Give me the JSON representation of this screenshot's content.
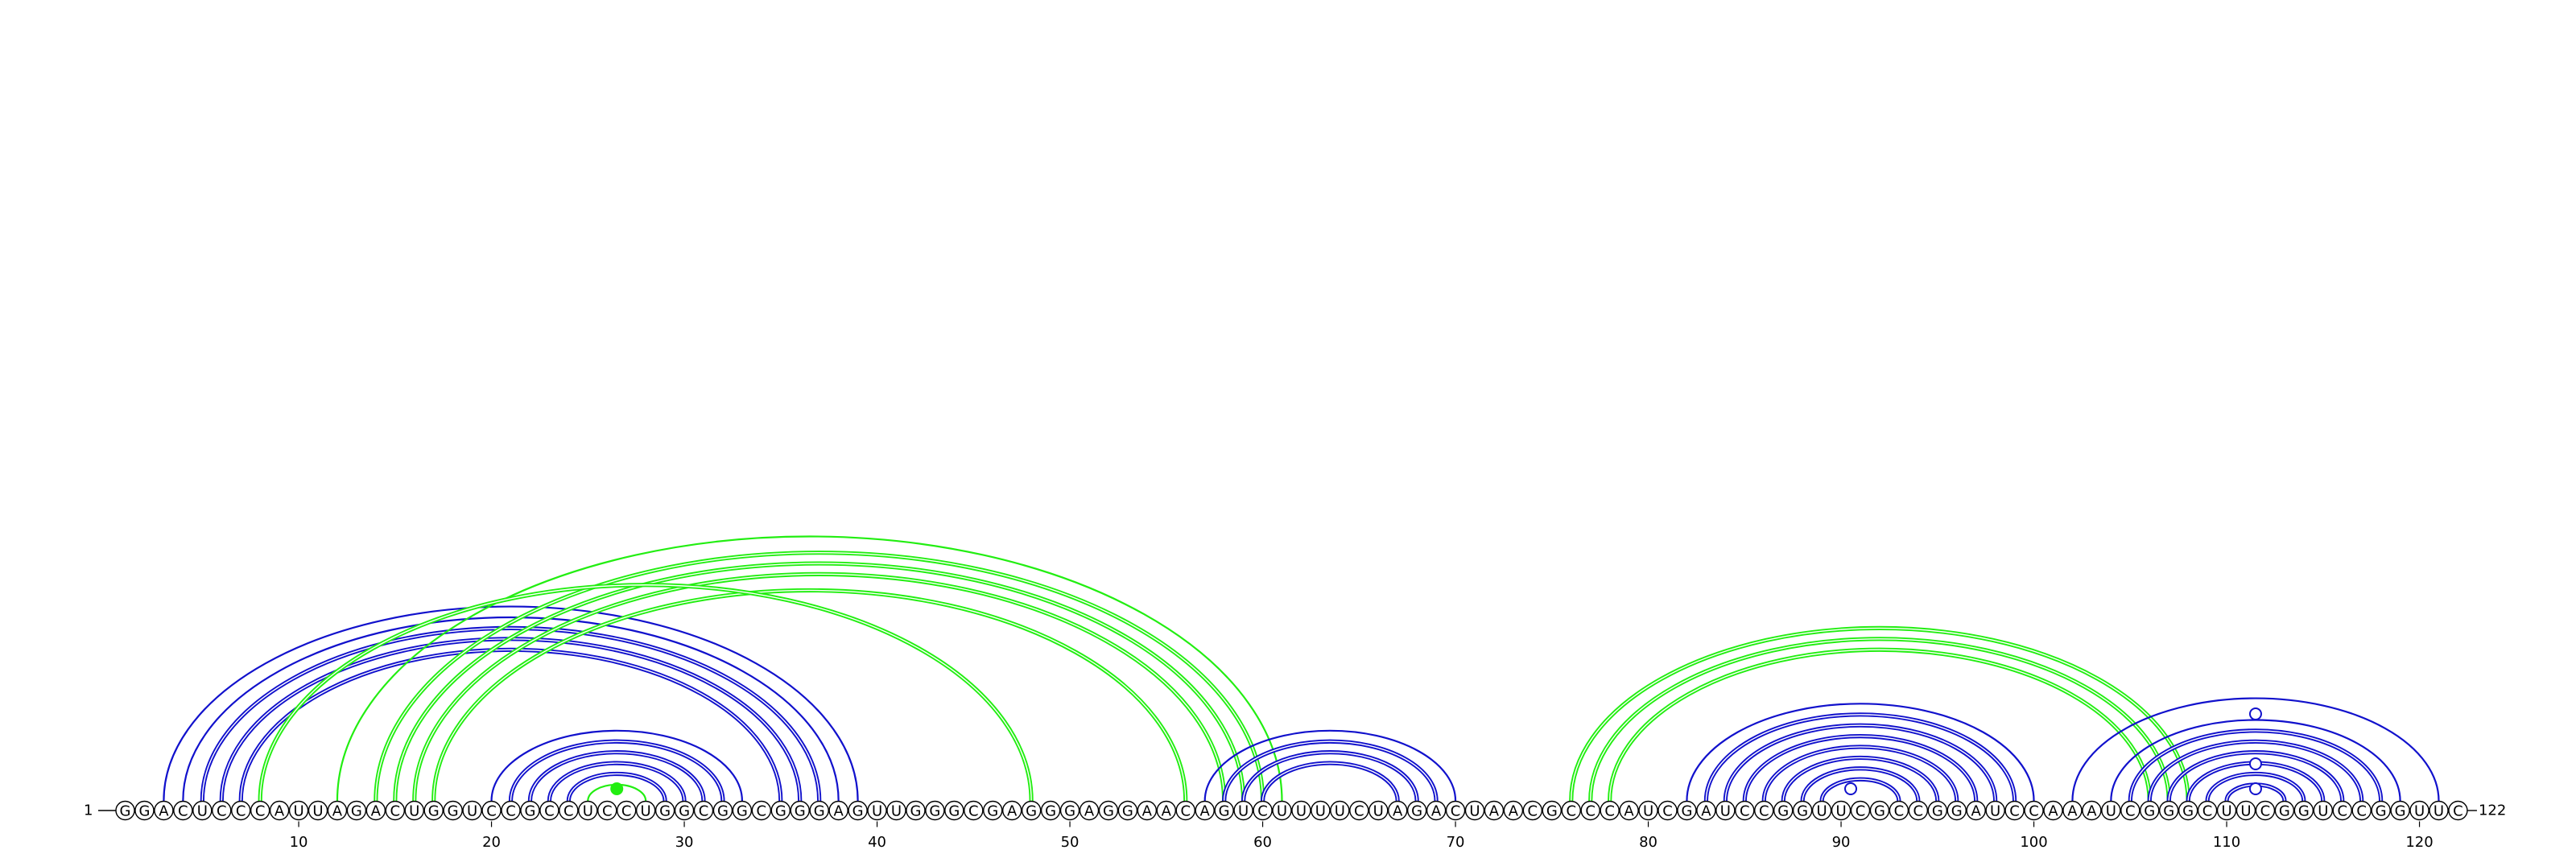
{
  "sequence": "GGACUCCCAUUAGACUGGUCCGCCUCCUGGCGGCGGGAGUUGGGCGAGGGAGGAACAGUCUUUUCUAGACUAACGCCCAUCGAUCCGGUUCGCCGGAUCCAAAUCGGGCUUCGGUCCGGUUC",
  "length": 122,
  "start_label": "1",
  "end_label": "122",
  "ticks": [
    10,
    20,
    30,
    40,
    50,
    60,
    70,
    80,
    90,
    100,
    110,
    120
  ],
  "colors": {
    "blue": "#1111cc",
    "green": "#22ee11"
  },
  "arcs": [
    {
      "i": 3,
      "j": 39,
      "color": "blue",
      "thick": false
    },
    {
      "i": 4,
      "j": 38,
      "color": "blue",
      "thick": false
    },
    {
      "i": 5,
      "j": 37,
      "color": "blue",
      "thick": true
    },
    {
      "i": 6,
      "j": 36,
      "color": "blue",
      "thick": true
    },
    {
      "i": 7,
      "j": 35,
      "color": "blue",
      "thick": true
    },
    {
      "i": 20,
      "j": 33,
      "color": "blue",
      "thick": false
    },
    {
      "i": 21,
      "j": 32,
      "color": "blue",
      "thick": true
    },
    {
      "i": 22,
      "j": 31,
      "color": "blue",
      "thick": true
    },
    {
      "i": 23,
      "j": 30,
      "color": "blue",
      "thick": true
    },
    {
      "i": 24,
      "j": 29,
      "color": "blue",
      "thick": true
    },
    {
      "i": 25,
      "j": 28,
      "color": "green",
      "thick": false
    },
    {
      "i": 12,
      "j": 61,
      "color": "green",
      "thick": false
    },
    {
      "i": 14,
      "j": 60,
      "color": "green",
      "thick": true
    },
    {
      "i": 15,
      "j": 59,
      "color": "green",
      "thick": true
    },
    {
      "i": 16,
      "j": 58,
      "color": "green",
      "thick": true
    },
    {
      "i": 17,
      "j": 56,
      "color": "green",
      "thick": true
    },
    {
      "i": 8,
      "j": 48,
      "color": "green",
      "thick": true
    },
    {
      "i": 57,
      "j": 70,
      "color": "blue",
      "thick": false
    },
    {
      "i": 58,
      "j": 69,
      "color": "blue",
      "thick": true
    },
    {
      "i": 59,
      "j": 68,
      "color": "blue",
      "thick": true
    },
    {
      "i": 60,
      "j": 67,
      "color": "blue",
      "thick": true
    },
    {
      "i": 76,
      "j": 108,
      "color": "green",
      "thick": true
    },
    {
      "i": 77,
      "j": 107,
      "color": "green",
      "thick": true
    },
    {
      "i": 78,
      "j": 106,
      "color": "green",
      "thick": true
    },
    {
      "i": 82,
      "j": 100,
      "color": "blue",
      "thick": false
    },
    {
      "i": 83,
      "j": 99,
      "color": "blue",
      "thick": true
    },
    {
      "i": 84,
      "j": 98,
      "color": "blue",
      "thick": true
    },
    {
      "i": 85,
      "j": 97,
      "color": "blue",
      "thick": true
    },
    {
      "i": 86,
      "j": 96,
      "color": "blue",
      "thick": true
    },
    {
      "i": 87,
      "j": 95,
      "color": "blue",
      "thick": true
    },
    {
      "i": 88,
      "j": 94,
      "color": "blue",
      "thick": true
    },
    {
      "i": 89,
      "j": 93,
      "color": "blue",
      "thick": true
    },
    {
      "i": 102,
      "j": 121,
      "color": "blue",
      "thick": false
    },
    {
      "i": 104,
      "j": 119,
      "color": "blue",
      "thick": false
    },
    {
      "i": 105,
      "j": 118,
      "color": "blue",
      "thick": true
    },
    {
      "i": 106,
      "j": 117,
      "color": "blue",
      "thick": true
    },
    {
      "i": 107,
      "j": 116,
      "color": "blue",
      "thick": true
    },
    {
      "i": 108,
      "j": 115,
      "color": "blue",
      "thick": true
    },
    {
      "i": 109,
      "j": 114,
      "color": "blue",
      "thick": true
    },
    {
      "i": 110,
      "j": 113,
      "color": "blue",
      "thick": true
    }
  ],
  "markers": [
    {
      "pos": 26.5,
      "level": 1,
      "color": "green",
      "filled": true
    },
    {
      "pos": 90.5,
      "level": 1,
      "color": "blue",
      "filled": false
    },
    {
      "pos": 111.5,
      "level": 1,
      "color": "blue",
      "filled": false
    },
    {
      "pos": 111.5,
      "level": 2,
      "color": "blue",
      "filled": false
    },
    {
      "pos": 111.5,
      "level": 4,
      "color": "blue",
      "filled": false
    }
  ]
}
